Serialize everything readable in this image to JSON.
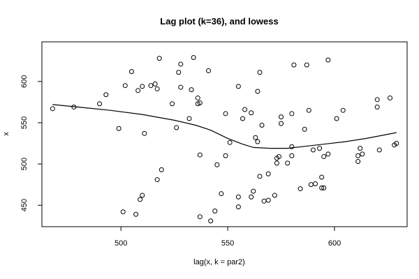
{
  "chart_data": {
    "type": "scatter",
    "title": "Lag plot (k=36), and lowess",
    "xlabel": "lag(x, k = par2)",
    "ylabel": "x",
    "xlim": [
      463,
      634
    ],
    "ylim": [
      424,
      648
    ],
    "x_ticks": [
      500,
      550,
      600
    ],
    "y_ticks": [
      450,
      500,
      550,
      600
    ],
    "grid": false,
    "legend": "none",
    "points": [
      [
        468,
        567
      ],
      [
        478,
        569
      ],
      [
        490,
        573
      ],
      [
        493,
        584
      ],
      [
        499,
        543
      ],
      [
        501,
        442
      ],
      [
        502,
        595
      ],
      [
        505,
        612
      ],
      [
        507,
        439
      ],
      [
        508,
        589
      ],
      [
        509,
        457
      ],
      [
        510,
        462
      ],
      [
        510,
        594
      ],
      [
        511,
        537
      ],
      [
        514,
        595
      ],
      [
        516,
        597
      ],
      [
        517,
        481
      ],
      [
        517,
        591
      ],
      [
        518,
        628
      ],
      [
        519,
        493
      ],
      [
        524,
        573
      ],
      [
        526,
        544
      ],
      [
        527,
        611
      ],
      [
        528,
        593
      ],
      [
        528,
        621
      ],
      [
        532,
        555
      ],
      [
        533,
        590
      ],
      [
        534,
        629
      ],
      [
        536,
        580
      ],
      [
        536,
        573
      ],
      [
        537,
        574
      ],
      [
        537,
        436
      ],
      [
        537,
        511
      ],
      [
        541,
        613
      ],
      [
        542,
        431
      ],
      [
        544,
        443
      ],
      [
        545,
        499
      ],
      [
        547,
        464
      ],
      [
        549,
        561
      ],
      [
        549,
        510
      ],
      [
        551,
        526
      ],
      [
        555,
        460
      ],
      [
        555,
        448
      ],
      [
        555,
        594
      ],
      [
        557,
        555
      ],
      [
        558,
        566
      ],
      [
        561,
        562
      ],
      [
        561,
        460
      ],
      [
        562,
        467
      ],
      [
        563,
        532
      ],
      [
        564,
        527
      ],
      [
        564,
        588
      ],
      [
        565,
        611
      ],
      [
        565,
        485
      ],
      [
        566,
        547
      ],
      [
        567,
        455
      ],
      [
        569,
        456
      ],
      [
        569,
        488
      ],
      [
        572,
        462
      ],
      [
        573,
        507
      ],
      [
        573,
        501
      ],
      [
        574,
        509
      ],
      [
        575,
        549
      ],
      [
        575,
        557
      ],
      [
        578,
        501
      ],
      [
        580,
        521
      ],
      [
        580,
        510
      ],
      [
        580,
        561
      ],
      [
        581,
        620
      ],
      [
        584,
        470
      ],
      [
        586,
        542
      ],
      [
        587,
        620
      ],
      [
        588,
        565
      ],
      [
        589,
        475
      ],
      [
        590,
        517
      ],
      [
        591,
        476
      ],
      [
        593,
        519
      ],
      [
        594,
        484
      ],
      [
        594,
        471
      ],
      [
        595,
        471
      ],
      [
        595,
        509
      ],
      [
        597,
        626
      ],
      [
        597,
        512
      ],
      [
        601,
        555
      ],
      [
        604,
        565
      ],
      [
        611,
        503
      ],
      [
        611,
        510
      ],
      [
        612,
        519
      ],
      [
        613,
        512
      ],
      [
        620,
        569
      ],
      [
        620,
        578
      ],
      [
        621,
        517
      ],
      [
        626,
        580
      ],
      [
        628,
        523
      ],
      [
        629,
        525
      ]
    ],
    "lowess": [
      [
        468,
        572
      ],
      [
        480,
        569
      ],
      [
        495,
        565
      ],
      [
        510,
        560
      ],
      [
        525,
        553
      ],
      [
        535,
        547
      ],
      [
        542,
        541
      ],
      [
        550,
        531
      ],
      [
        557,
        524
      ],
      [
        562,
        520
      ],
      [
        570,
        519
      ],
      [
        578,
        519
      ],
      [
        585,
        521
      ],
      [
        595,
        524
      ],
      [
        605,
        527
      ],
      [
        615,
        531
      ],
      [
        629,
        538
      ]
    ]
  }
}
